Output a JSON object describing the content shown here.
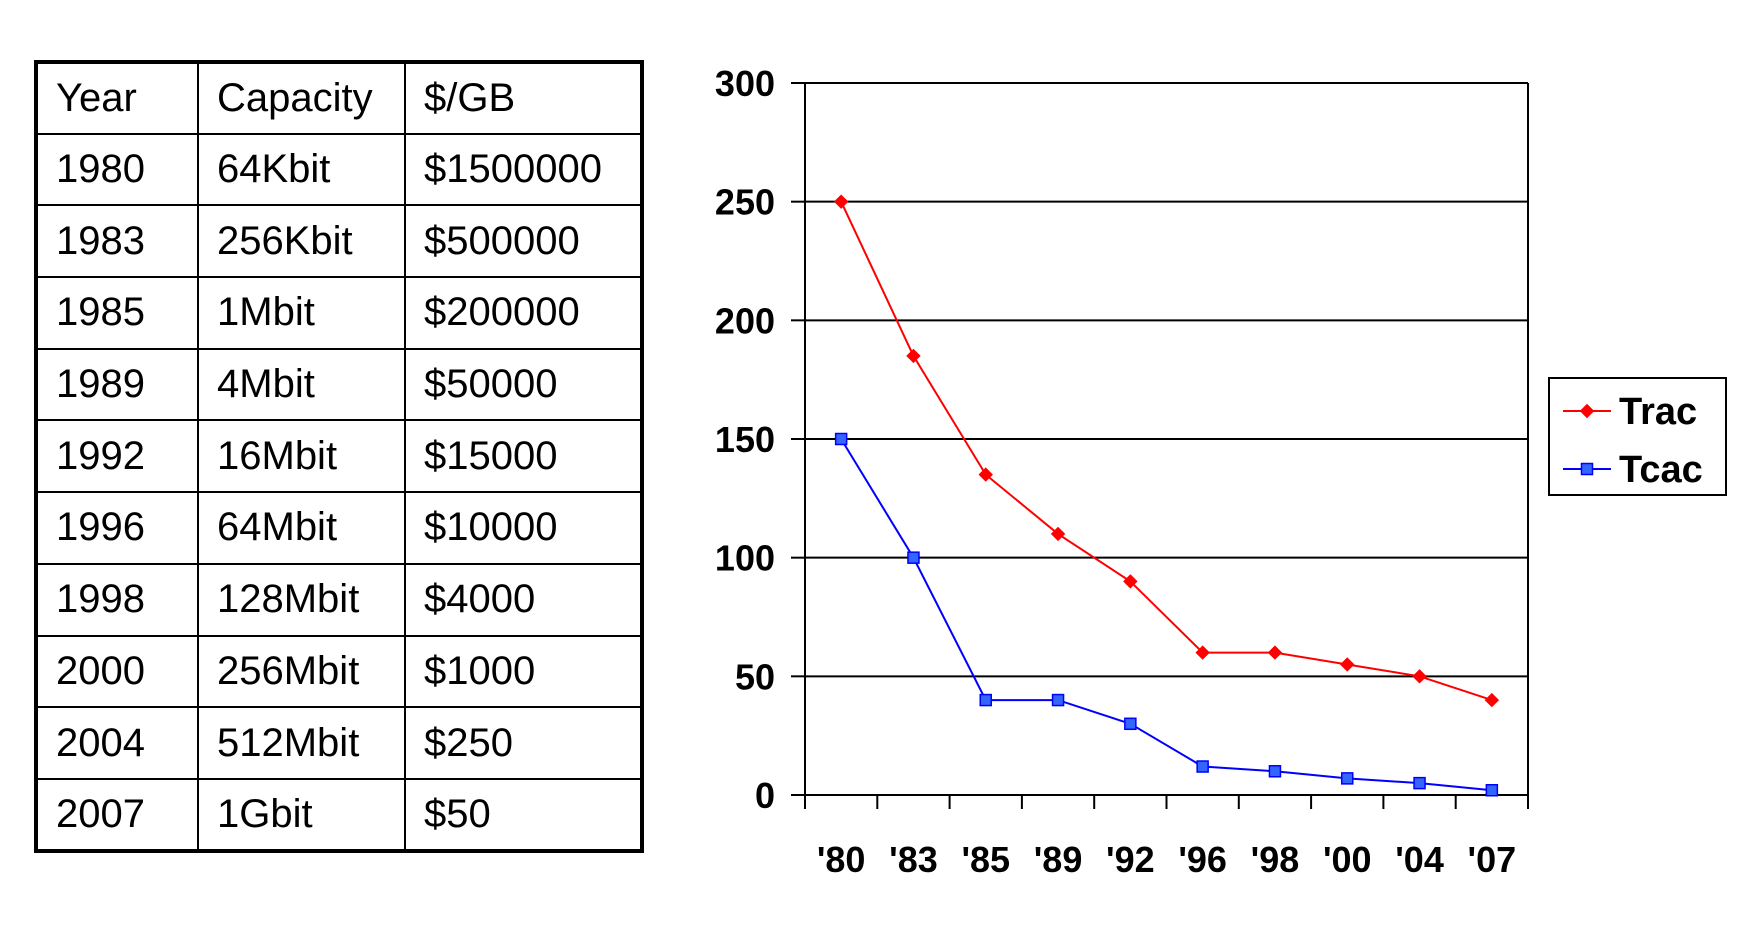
{
  "table": {
    "headers": [
      "Year",
      "Capacity",
      "$/GB"
    ],
    "rows": [
      [
        "1980",
        "64Kbit",
        "$1500000"
      ],
      [
        "1983",
        "256Kbit",
        "$500000"
      ],
      [
        "1985",
        "1Mbit",
        "$200000"
      ],
      [
        "1989",
        "4Mbit",
        "$50000"
      ],
      [
        "1992",
        "16Mbit",
        "$15000"
      ],
      [
        "1996",
        "64Mbit",
        "$10000"
      ],
      [
        "1998",
        "128Mbit",
        "$4000"
      ],
      [
        "2000",
        "256Mbit",
        "$1000"
      ],
      [
        "2004",
        "512Mbit",
        "$250"
      ],
      [
        "2007",
        "1Gbit",
        "$50"
      ]
    ]
  },
  "chart_data": {
    "type": "line",
    "title": "",
    "xlabel": "",
    "ylabel": "",
    "categories": [
      "'80",
      "'83",
      "'85",
      "'89",
      "'92",
      "'96",
      "'98",
      "'00",
      "'04",
      "'07"
    ],
    "ylim": [
      0,
      300
    ],
    "yticks": [
      0,
      50,
      100,
      150,
      200,
      250,
      300
    ],
    "grid": true,
    "legend_position": "right",
    "series": [
      {
        "name": "Trac",
        "values": [
          250,
          185,
          135,
          110,
          90,
          60,
          60,
          55,
          50,
          40
        ],
        "color": "#ff0000",
        "marker": "diamond"
      },
      {
        "name": "Tcac",
        "values": [
          150,
          100,
          40,
          40,
          30,
          12,
          10,
          7,
          5,
          2
        ],
        "color": "#0000ff",
        "marker": "square"
      }
    ]
  }
}
